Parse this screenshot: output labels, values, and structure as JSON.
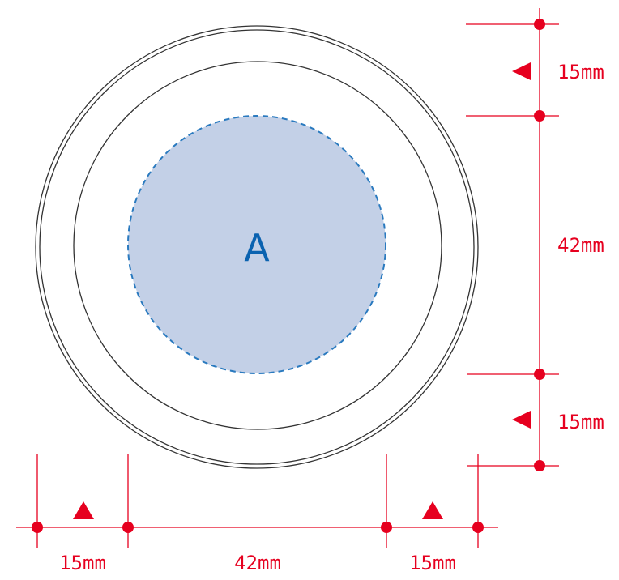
{
  "diagram": {
    "area_label": "A",
    "colors": {
      "dimension": "#e6001f",
      "outline": "#333333",
      "area_fill": "#c3d0e7",
      "area_border": "#2a7abf",
      "area_text": "#0a62b0"
    },
    "dimensions": {
      "horizontal": {
        "left_margin": "15mm",
        "center": "42mm",
        "right_margin": "15mm"
      },
      "vertical": {
        "top_margin": "15mm",
        "center": "42mm",
        "bottom_margin": "15mm"
      }
    }
  }
}
